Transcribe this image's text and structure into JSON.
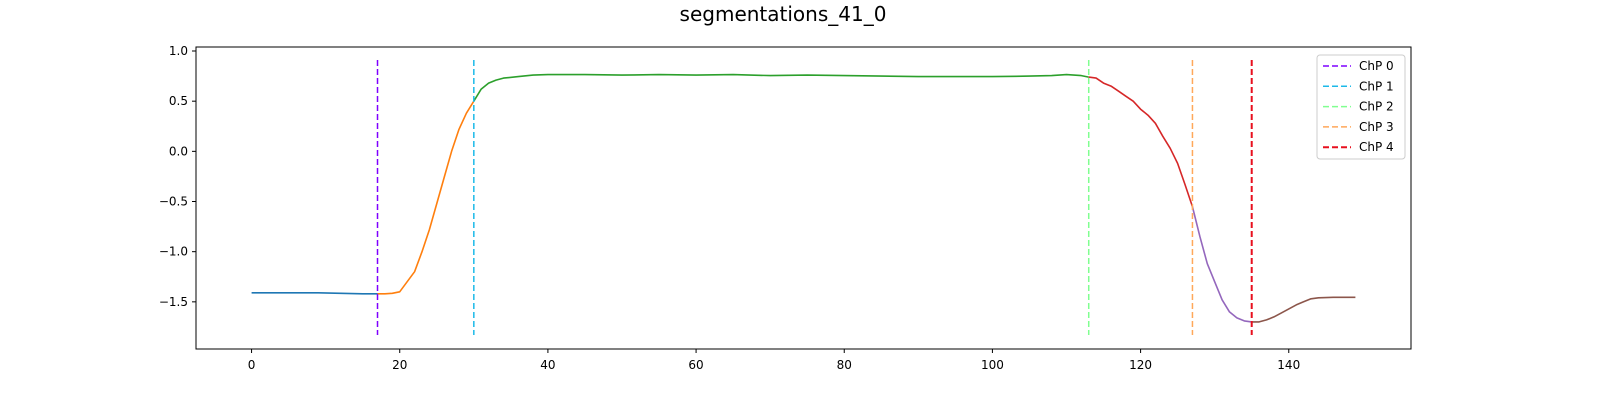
{
  "chart_data": {
    "type": "line",
    "title": "segmentations_41_0",
    "xlabel": "",
    "ylabel": "",
    "xlim": [
      -7.5,
      156.5
    ],
    "ylim": [
      -1.97,
      1.04
    ],
    "xticks": [
      0,
      20,
      40,
      60,
      80,
      100,
      120,
      140
    ],
    "yticks": [
      1.0,
      0.5,
      0.0,
      -0.5,
      -1.0,
      -1.5
    ],
    "ytick_labels": [
      "1.0",
      "0.5",
      "0.0",
      "−0.5",
      "−1.0",
      "−1.5"
    ],
    "grid": false,
    "legend": "top-right",
    "segments": [
      {
        "color": "#1f77b4",
        "x": [
          0,
          3,
          6,
          9,
          12,
          15,
          17
        ],
        "y": [
          -1.41,
          -1.41,
          -1.41,
          -1.41,
          -1.415,
          -1.42,
          -1.42
        ]
      },
      {
        "color": "#ff7f0e",
        "x": [
          17,
          18,
          19,
          20,
          21,
          22,
          23,
          24,
          25,
          26,
          27,
          28,
          29,
          30
        ],
        "y": [
          -1.42,
          -1.42,
          -1.415,
          -1.4,
          -1.3,
          -1.2,
          -1.0,
          -0.78,
          -0.52,
          -0.26,
          0.0,
          0.22,
          0.38,
          0.5
        ]
      },
      {
        "color": "#2ca02c",
        "x": [
          30,
          31,
          32,
          33,
          34,
          36,
          38,
          40,
          45,
          50,
          55,
          60,
          65,
          70,
          75,
          80,
          85,
          90,
          95,
          100,
          105,
          108,
          110,
          112,
          113
        ],
        "y": [
          0.5,
          0.62,
          0.68,
          0.71,
          0.73,
          0.745,
          0.76,
          0.765,
          0.765,
          0.76,
          0.765,
          0.76,
          0.765,
          0.755,
          0.76,
          0.755,
          0.75,
          0.745,
          0.745,
          0.745,
          0.75,
          0.755,
          0.765,
          0.755,
          0.74
        ]
      },
      {
        "color": "#d62728",
        "x": [
          113,
          114,
          115,
          116,
          117,
          118,
          119,
          120,
          121,
          122,
          123,
          124,
          125,
          126,
          127
        ],
        "y": [
          0.74,
          0.73,
          0.68,
          0.65,
          0.6,
          0.55,
          0.5,
          0.42,
          0.36,
          0.28,
          0.15,
          0.03,
          -0.12,
          -0.33,
          -0.55
        ]
      },
      {
        "color": "#9467bd",
        "x": [
          127,
          128,
          129,
          130,
          131,
          132,
          133,
          134,
          135
        ],
        "y": [
          -0.55,
          -0.85,
          -1.12,
          -1.3,
          -1.48,
          -1.6,
          -1.66,
          -1.69,
          -1.7
        ]
      },
      {
        "color": "#8c564b",
        "x": [
          135,
          136,
          137,
          138,
          139,
          140,
          141,
          142,
          143,
          144,
          146,
          148,
          149
        ],
        "y": [
          -1.7,
          -1.7,
          -1.68,
          -1.65,
          -1.61,
          -1.57,
          -1.53,
          -1.5,
          -1.47,
          -1.46,
          -1.455,
          -1.455,
          -1.455
        ]
      }
    ],
    "changepoints": [
      {
        "label": "ChP 0",
        "x": 17,
        "color": "#7f00ff",
        "width": 1.5
      },
      {
        "label": "ChP 1",
        "x": 30,
        "color": "#1cb9e8",
        "width": 1.5
      },
      {
        "label": "ChP 2",
        "x": 113,
        "color": "#80ff90",
        "width": 1.5
      },
      {
        "label": "ChP 3",
        "x": 127,
        "color": "#ffa85a",
        "width": 1.5
      },
      {
        "label": "ChP 4",
        "x": 135,
        "color": "#e8101e",
        "width": 2.0
      }
    ],
    "changepoint_y": [
      -1.83,
      0.91
    ]
  }
}
